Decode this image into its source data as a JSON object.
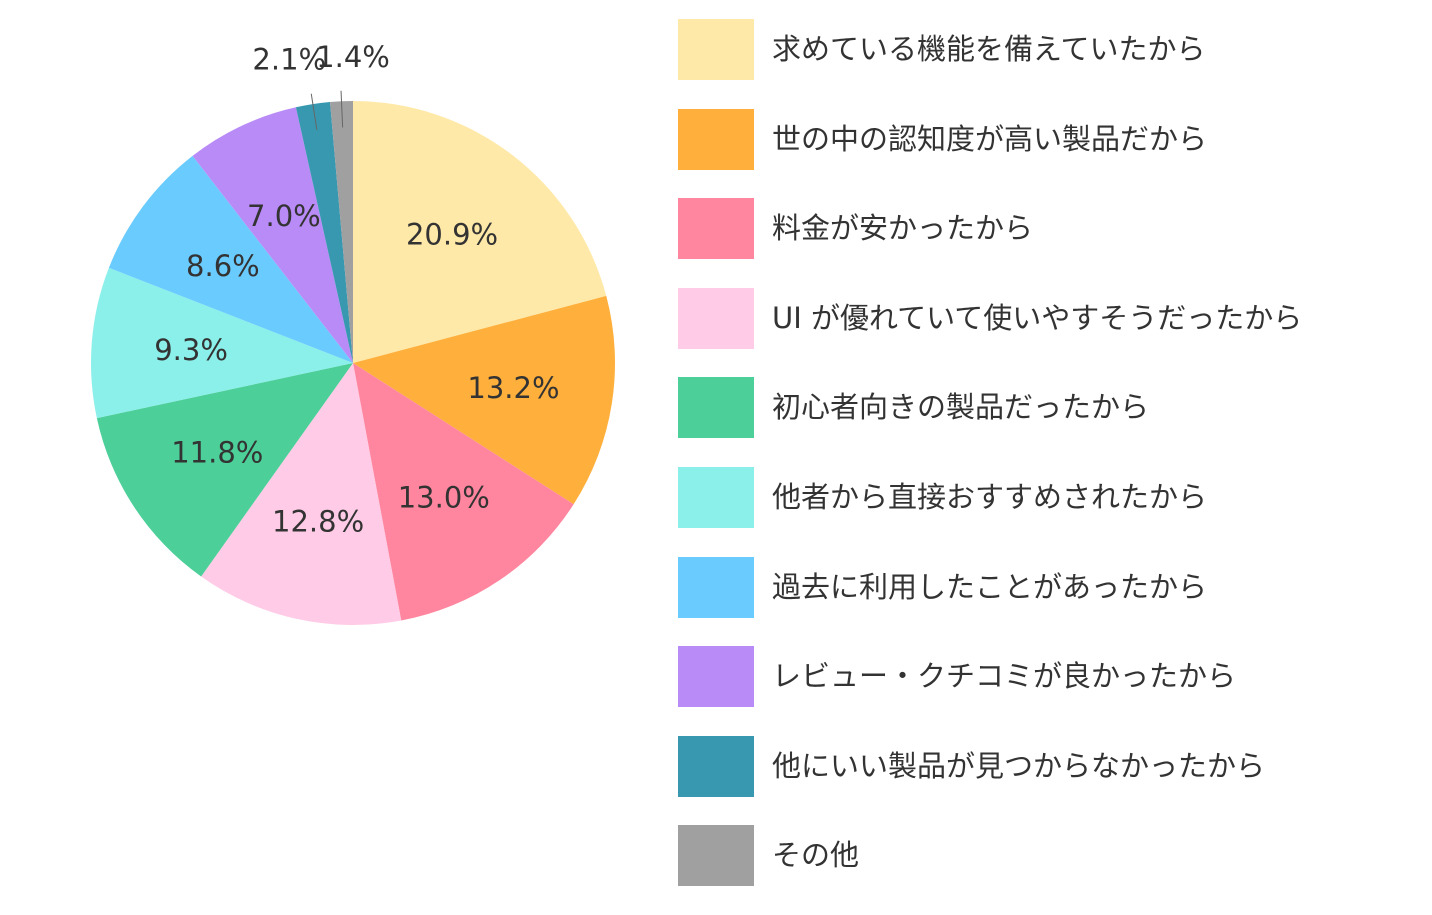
{
  "chart_data": {
    "type": "pie",
    "start_angle": "12 o'clock",
    "direction": "clockwise",
    "legend_position": "right",
    "slices": [
      {
        "label": "求めている機能を備えていたから",
        "value": 20.9,
        "value_label": "20.9%",
        "color": "#FFE9A8"
      },
      {
        "label": "世の中の認知度が高い製品だから",
        "value": 13.2,
        "value_label": "13.2%",
        "color": "#FFB03C"
      },
      {
        "label": "料金が安かったから",
        "value": 13.0,
        "value_label": "13.0%",
        "color": "#FF869E"
      },
      {
        "label": "UI が優れていて使いやすそうだったから",
        "value": 12.8,
        "value_label": "12.8%",
        "color": "#FFCBE6"
      },
      {
        "label": "初心者向きの製品だったから",
        "value": 11.8,
        "value_label": "11.8%",
        "color": "#4CCF99"
      },
      {
        "label": "他者から直接おすすめされたから",
        "value": 9.3,
        "value_label": "9.3%",
        "color": "#8BEFEA"
      },
      {
        "label": "過去に利用したことがあったから",
        "value": 8.6,
        "value_label": "8.6%",
        "color": "#6ACBFF"
      },
      {
        "label": "レビュー・クチコミが良かったから",
        "value": 7.0,
        "value_label": "7.0%",
        "color": "#B98BF7"
      },
      {
        "label": "他にいい製品が見つからなかったから",
        "value": 2.1,
        "value_label": "2.1%",
        "color": "#3898B0"
      },
      {
        "label": "その他",
        "value": 1.4,
        "value_label": "1.4%",
        "color": "#A0A0A0"
      }
    ]
  }
}
